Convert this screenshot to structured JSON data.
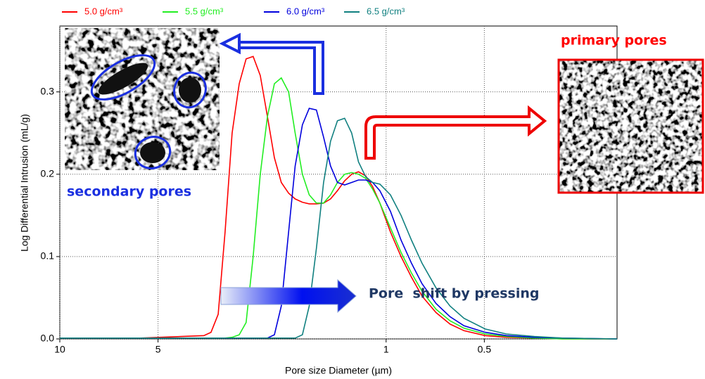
{
  "chart_data": {
    "type": "line",
    "x_label": "Pore size Diameter (µm)",
    "y_label": "Log Differential Intrusion (mL/g)",
    "x_log": true,
    "x_reversed": true,
    "grid": true,
    "legend": "top",
    "xlim": [
      10,
      0.196
    ],
    "ylim": [
      0,
      0.38
    ],
    "xticks": [
      10,
      5,
      1,
      0.5
    ],
    "yticks": [
      {
        "value": 0,
        "label": "0.0"
      },
      {
        "value": 0.1,
        "label": "0.1"
      },
      {
        "value": 0.2,
        "label": "0.2"
      },
      {
        "value": 0.3,
        "label": "0.3"
      }
    ],
    "x": [
      10,
      5.65,
      3.62,
      3.44,
      3.27,
      3.115,
      2.965,
      2.82,
      2.685,
      2.555,
      2.43,
      2.31,
      2.2,
      2.095,
      1.99,
      1.9,
      1.805,
      1.72,
      1.635,
      1.555,
      1.48,
      1.41,
      1.34,
      1.275,
      1.215,
      1.155,
      1.1,
      1.045,
      0.97,
      0.9,
      0.836,
      0.776,
      0.703,
      0.637,
      0.577,
      0.497,
      0.428,
      0.351,
      0.288,
      0.196
    ],
    "series": [
      {
        "name": "5.0 g/cm³",
        "color": "#ff0000",
        "values": [
          0.001,
          0.001,
          0.004,
          0.008,
          0.03,
          0.13,
          0.25,
          0.31,
          0.34,
          0.343,
          0.32,
          0.27,
          0.22,
          0.19,
          0.177,
          0.17,
          0.166,
          0.164,
          0.164,
          0.165,
          0.17,
          0.18,
          0.192,
          0.2,
          0.203,
          0.198,
          0.185,
          0.165,
          0.13,
          0.1,
          0.075,
          0.052,
          0.032,
          0.018,
          0.01,
          0.004,
          0.002,
          0.001,
          0,
          0
        ]
      },
      {
        "name": "5.5 g/cm³",
        "color": "#22ee22",
        "values": [
          0.001,
          0.001,
          0.001,
          0.001,
          0.001,
          0.001,
          0.002,
          0.005,
          0.02,
          0.1,
          0.2,
          0.27,
          0.31,
          0.317,
          0.3,
          0.25,
          0.2,
          0.175,
          0.165,
          0.165,
          0.175,
          0.19,
          0.2,
          0.202,
          0.2,
          0.195,
          0.182,
          0.165,
          0.135,
          0.105,
          0.08,
          0.058,
          0.036,
          0.022,
          0.013,
          0.006,
          0.003,
          0.001,
          0,
          0
        ]
      },
      {
        "name": "6.0 g/cm³",
        "color": "#0000dd",
        "values": [
          0.001,
          0.001,
          0.001,
          0.001,
          0.001,
          0.001,
          0.001,
          0.001,
          0.001,
          0.001,
          0.001,
          0.001,
          0.005,
          0.04,
          0.13,
          0.21,
          0.26,
          0.28,
          0.278,
          0.245,
          0.21,
          0.19,
          0.187,
          0.19,
          0.193,
          0.193,
          0.19,
          0.18,
          0.155,
          0.12,
          0.092,
          0.067,
          0.043,
          0.027,
          0.016,
          0.008,
          0.004,
          0.002,
          0.001,
          0
        ]
      },
      {
        "name": "6.5 g/cm³",
        "color": "#118080",
        "values": [
          0.001,
          0.001,
          0.001,
          0.001,
          0.001,
          0.001,
          0.001,
          0.001,
          0.001,
          0.001,
          0.001,
          0.001,
          0.001,
          0.001,
          0.001,
          0.001,
          0.005,
          0.04,
          0.11,
          0.19,
          0.24,
          0.265,
          0.268,
          0.25,
          0.215,
          0.197,
          0.19,
          0.188,
          0.175,
          0.15,
          0.12,
          0.092,
          0.062,
          0.04,
          0.025,
          0.012,
          0.006,
          0.003,
          0.001,
          0
        ]
      }
    ],
    "annotations": [
      "secondary pores",
      "primary pores",
      "Pore  shift by pressing"
    ]
  }
}
